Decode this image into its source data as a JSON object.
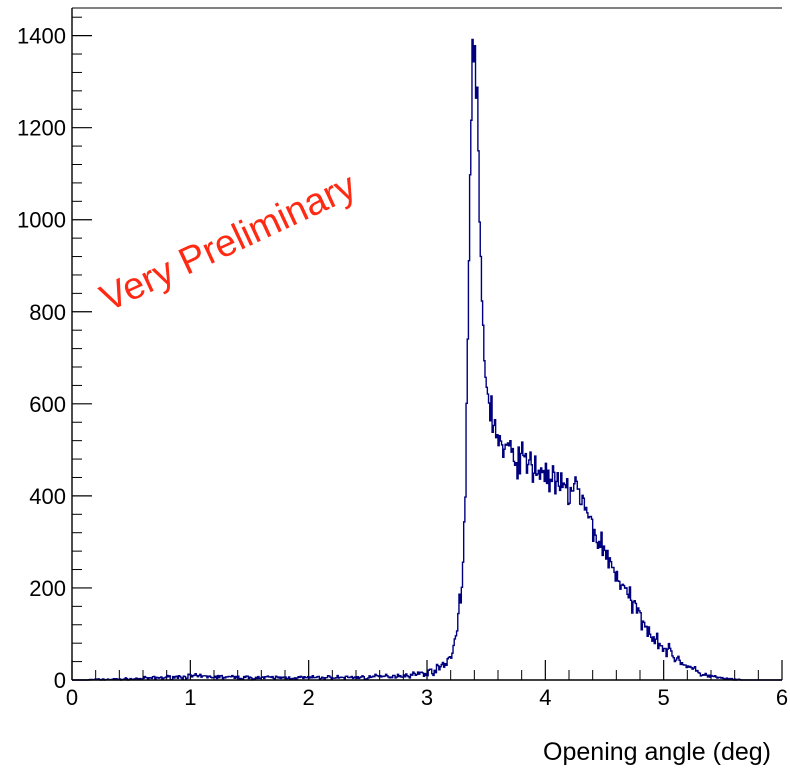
{
  "chart_data": {
    "type": "line",
    "style": "step-histogram",
    "title": "",
    "xlabel": "Opening angle (deg)",
    "ylabel": "",
    "xlim": [
      0,
      6
    ],
    "ylim": [
      0,
      1460
    ],
    "x_ticks": [
      0,
      1,
      2,
      3,
      4,
      5,
      6
    ],
    "x_tick_labels": [
      "0",
      "1",
      "2",
      "3",
      "4",
      "5",
      "6"
    ],
    "y_ticks": [
      0,
      200,
      400,
      600,
      800,
      1000,
      1200,
      1400
    ],
    "y_tick_labels": [
      "0",
      "200",
      "400",
      "600",
      "800",
      "1000",
      "1200",
      "1400"
    ],
    "grid": false,
    "legend": "none",
    "annotation": "Very Preliminary",
    "colors": {
      "line": "#00007f",
      "annotation": "#ff2a14",
      "axis": "#000000"
    },
    "series": [
      {
        "x": [
          0.0,
          0.5,
          1.0,
          1.5,
          2.0,
          2.5,
          2.8,
          3.0,
          3.1,
          3.2,
          3.25,
          3.3,
          3.33,
          3.36,
          3.38,
          3.4,
          3.42,
          3.44,
          3.46,
          3.48,
          3.5,
          3.55,
          3.6,
          3.65,
          3.7,
          3.8,
          3.9,
          4.0,
          4.1,
          4.2,
          4.25,
          4.3,
          4.4,
          4.5,
          4.6,
          4.7,
          4.8,
          4.9,
          5.0,
          5.1,
          5.2,
          5.3,
          5.4,
          5.5,
          5.6,
          5.7,
          6.0
        ],
        "values": [
          0,
          2,
          8,
          5,
          5,
          6,
          10,
          15,
          25,
          50,
          100,
          220,
          480,
          1000,
          1320,
          1390,
          1300,
          1020,
          860,
          720,
          640,
          580,
          520,
          500,
          490,
          480,
          460,
          450,
          420,
          410,
          430,
          390,
          330,
          280,
          230,
          180,
          140,
          100,
          70,
          50,
          30,
          15,
          8,
          3,
          1,
          0,
          0
        ]
      }
    ]
  }
}
